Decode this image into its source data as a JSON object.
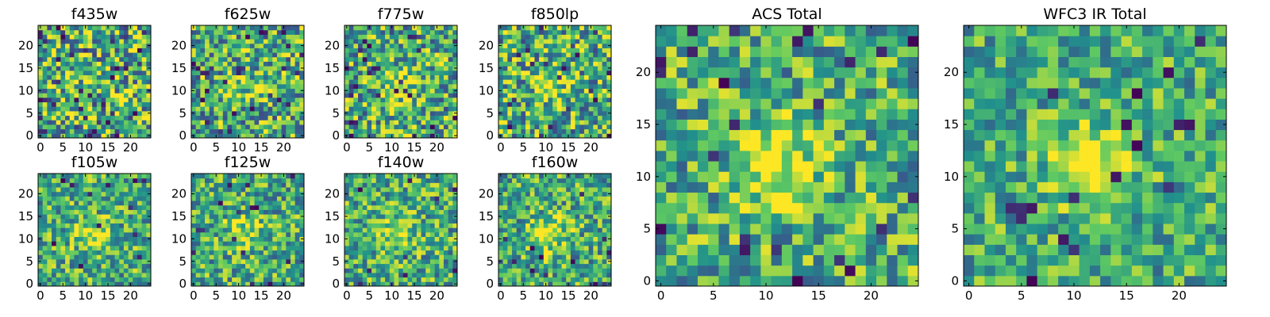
{
  "figure": {
    "colormap": "viridis",
    "colormap_stops": [
      "#440154",
      "#3b528b",
      "#21918c",
      "#5ec962",
      "#fde725"
    ]
  },
  "chart_data": [
    {
      "type": "heatmap",
      "title": "f435w",
      "grid": false,
      "size": [
        25,
        25
      ],
      "xlim": [
        -0.5,
        24.5
      ],
      "ylim": [
        -0.5,
        24.5
      ],
      "xticks": [
        0,
        5,
        10,
        15,
        20
      ],
      "yticks": [
        0,
        5,
        10,
        15,
        20
      ],
      "xtick_labels": [
        "0",
        "5",
        "10",
        "15",
        "20"
      ],
      "ytick_labels": [
        "0",
        "5",
        "10",
        "15",
        "20"
      ],
      "pattern": "noise, no clear source",
      "signal": 0.05,
      "noise": 0.55,
      "dark_outliers": 0.05,
      "seed": 11
    },
    {
      "type": "heatmap",
      "title": "f625w",
      "grid": false,
      "size": [
        25,
        25
      ],
      "xlim": [
        -0.5,
        24.5
      ],
      "ylim": [
        -0.5,
        24.5
      ],
      "xticks": [
        0,
        5,
        10,
        15,
        20
      ],
      "yticks": [
        0,
        5,
        10,
        15,
        20
      ],
      "xtick_labels": [
        "0",
        "5",
        "10",
        "15",
        "20"
      ],
      "ytick_labels": [
        "0",
        "5",
        "10",
        "15",
        "20"
      ],
      "pattern": "noise with faint central source",
      "signal": 0.18,
      "noise": 0.5,
      "dark_outliers": 0.04,
      "seed": 23
    },
    {
      "type": "heatmap",
      "title": "f775w",
      "grid": false,
      "size": [
        25,
        25
      ],
      "xlim": [
        -0.5,
        24.5
      ],
      "ylim": [
        -0.5,
        24.5
      ],
      "xticks": [
        0,
        5,
        10,
        15,
        20
      ],
      "yticks": [
        0,
        5,
        10,
        15,
        20
      ],
      "xtick_labels": [
        "0",
        "5",
        "10",
        "15",
        "20"
      ],
      "ytick_labels": [
        "0",
        "5",
        "10",
        "15",
        "20"
      ],
      "pattern": "noise with central source",
      "signal": 0.3,
      "noise": 0.5,
      "dark_outliers": 0.05,
      "seed": 37
    },
    {
      "type": "heatmap",
      "title": "f850lp",
      "grid": false,
      "size": [
        25,
        25
      ],
      "xlim": [
        -0.5,
        24.5
      ],
      "ylim": [
        -0.5,
        24.5
      ],
      "xticks": [
        0,
        5,
        10,
        15,
        20
      ],
      "yticks": [
        0,
        5,
        10,
        15,
        20
      ],
      "xtick_labels": [
        "0",
        "5",
        "10",
        "15",
        "20"
      ],
      "ytick_labels": [
        "0",
        "5",
        "10",
        "15",
        "20"
      ],
      "pattern": "noise with central source",
      "signal": 0.28,
      "noise": 0.5,
      "dark_outliers": 0.04,
      "seed": 41
    },
    {
      "type": "heatmap",
      "title": "f105w",
      "grid": false,
      "size": [
        25,
        25
      ],
      "xlim": [
        -0.5,
        24.5
      ],
      "ylim": [
        -0.5,
        24.5
      ],
      "xticks": [
        0,
        5,
        10,
        15,
        20
      ],
      "yticks": [
        0,
        5,
        10,
        15,
        20
      ],
      "xtick_labels": [
        "0",
        "5",
        "10",
        "15",
        "20"
      ],
      "ytick_labels": [
        "0",
        "5",
        "10",
        "15",
        "20"
      ],
      "pattern": "smooth noise with central source",
      "signal": 0.32,
      "noise": 0.42,
      "dark_outliers": 0.02,
      "seed": 53
    },
    {
      "type": "heatmap",
      "title": "f125w",
      "grid": false,
      "size": [
        25,
        25
      ],
      "xlim": [
        -0.5,
        24.5
      ],
      "ylim": [
        -0.5,
        24.5
      ],
      "xticks": [
        0,
        5,
        10,
        15,
        20
      ],
      "yticks": [
        0,
        5,
        10,
        15,
        20
      ],
      "xtick_labels": [
        "0",
        "5",
        "10",
        "15",
        "20"
      ],
      "ytick_labels": [
        "0",
        "5",
        "10",
        "15",
        "20"
      ],
      "pattern": "smooth noise with central source",
      "signal": 0.3,
      "noise": 0.42,
      "dark_outliers": 0.02,
      "seed": 67
    },
    {
      "type": "heatmap",
      "title": "f140w",
      "grid": false,
      "size": [
        25,
        25
      ],
      "xlim": [
        -0.5,
        24.5
      ],
      "ylim": [
        -0.5,
        24.5
      ],
      "xticks": [
        0,
        5,
        10,
        15,
        20
      ],
      "yticks": [
        0,
        5,
        10,
        15,
        20
      ],
      "xtick_labels": [
        "0",
        "5",
        "10",
        "15",
        "20"
      ],
      "ytick_labels": [
        "0",
        "5",
        "10",
        "15",
        "20"
      ],
      "pattern": "smooth noise with central source",
      "signal": 0.32,
      "noise": 0.42,
      "dark_outliers": 0.02,
      "seed": 79
    },
    {
      "type": "heatmap",
      "title": "f160w",
      "grid": false,
      "size": [
        25,
        25
      ],
      "xlim": [
        -0.5,
        24.5
      ],
      "ylim": [
        -0.5,
        24.5
      ],
      "xticks": [
        0,
        5,
        10,
        15,
        20
      ],
      "yticks": [
        0,
        5,
        10,
        15,
        20
      ],
      "xtick_labels": [
        "0",
        "5",
        "10",
        "15",
        "20"
      ],
      "ytick_labels": [
        "0",
        "5",
        "10",
        "15",
        "20"
      ],
      "pattern": "smooth noise with central source",
      "signal": 0.34,
      "noise": 0.42,
      "dark_outliers": 0.02,
      "seed": 83
    },
    {
      "type": "heatmap",
      "title": "ACS Total",
      "grid": false,
      "size": [
        25,
        25
      ],
      "xlim": [
        -0.5,
        24.5
      ],
      "ylim": [
        -0.5,
        24.5
      ],
      "xticks": [
        0,
        5,
        10,
        15,
        20
      ],
      "yticks": [
        0,
        5,
        10,
        15,
        20
      ],
      "xtick_labels": [
        "0",
        "5",
        "10",
        "15",
        "20"
      ],
      "ytick_labels": [
        "0",
        "5",
        "10",
        "15",
        "20"
      ],
      "pattern": "noise with bright central source near (12, 11)",
      "signal": 0.45,
      "noise": 0.42,
      "dark_outliers": 0.04,
      "seed": 97
    },
    {
      "type": "heatmap",
      "title": "WFC3 IR Total",
      "grid": false,
      "size": [
        25,
        25
      ],
      "xlim": [
        -0.5,
        24.5
      ],
      "ylim": [
        -0.5,
        24.5
      ],
      "xticks": [
        0,
        5,
        10,
        15,
        20
      ],
      "yticks": [
        0,
        5,
        10,
        15,
        20
      ],
      "xtick_labels": [
        "0",
        "5",
        "10",
        "15",
        "20"
      ],
      "ytick_labels": [
        "0",
        "5",
        "10",
        "15",
        "20"
      ],
      "pattern": "smooth noise with bright central source near (11, 11)",
      "signal": 0.5,
      "noise": 0.36,
      "dark_outliers": 0.03,
      "seed": 101
    }
  ]
}
